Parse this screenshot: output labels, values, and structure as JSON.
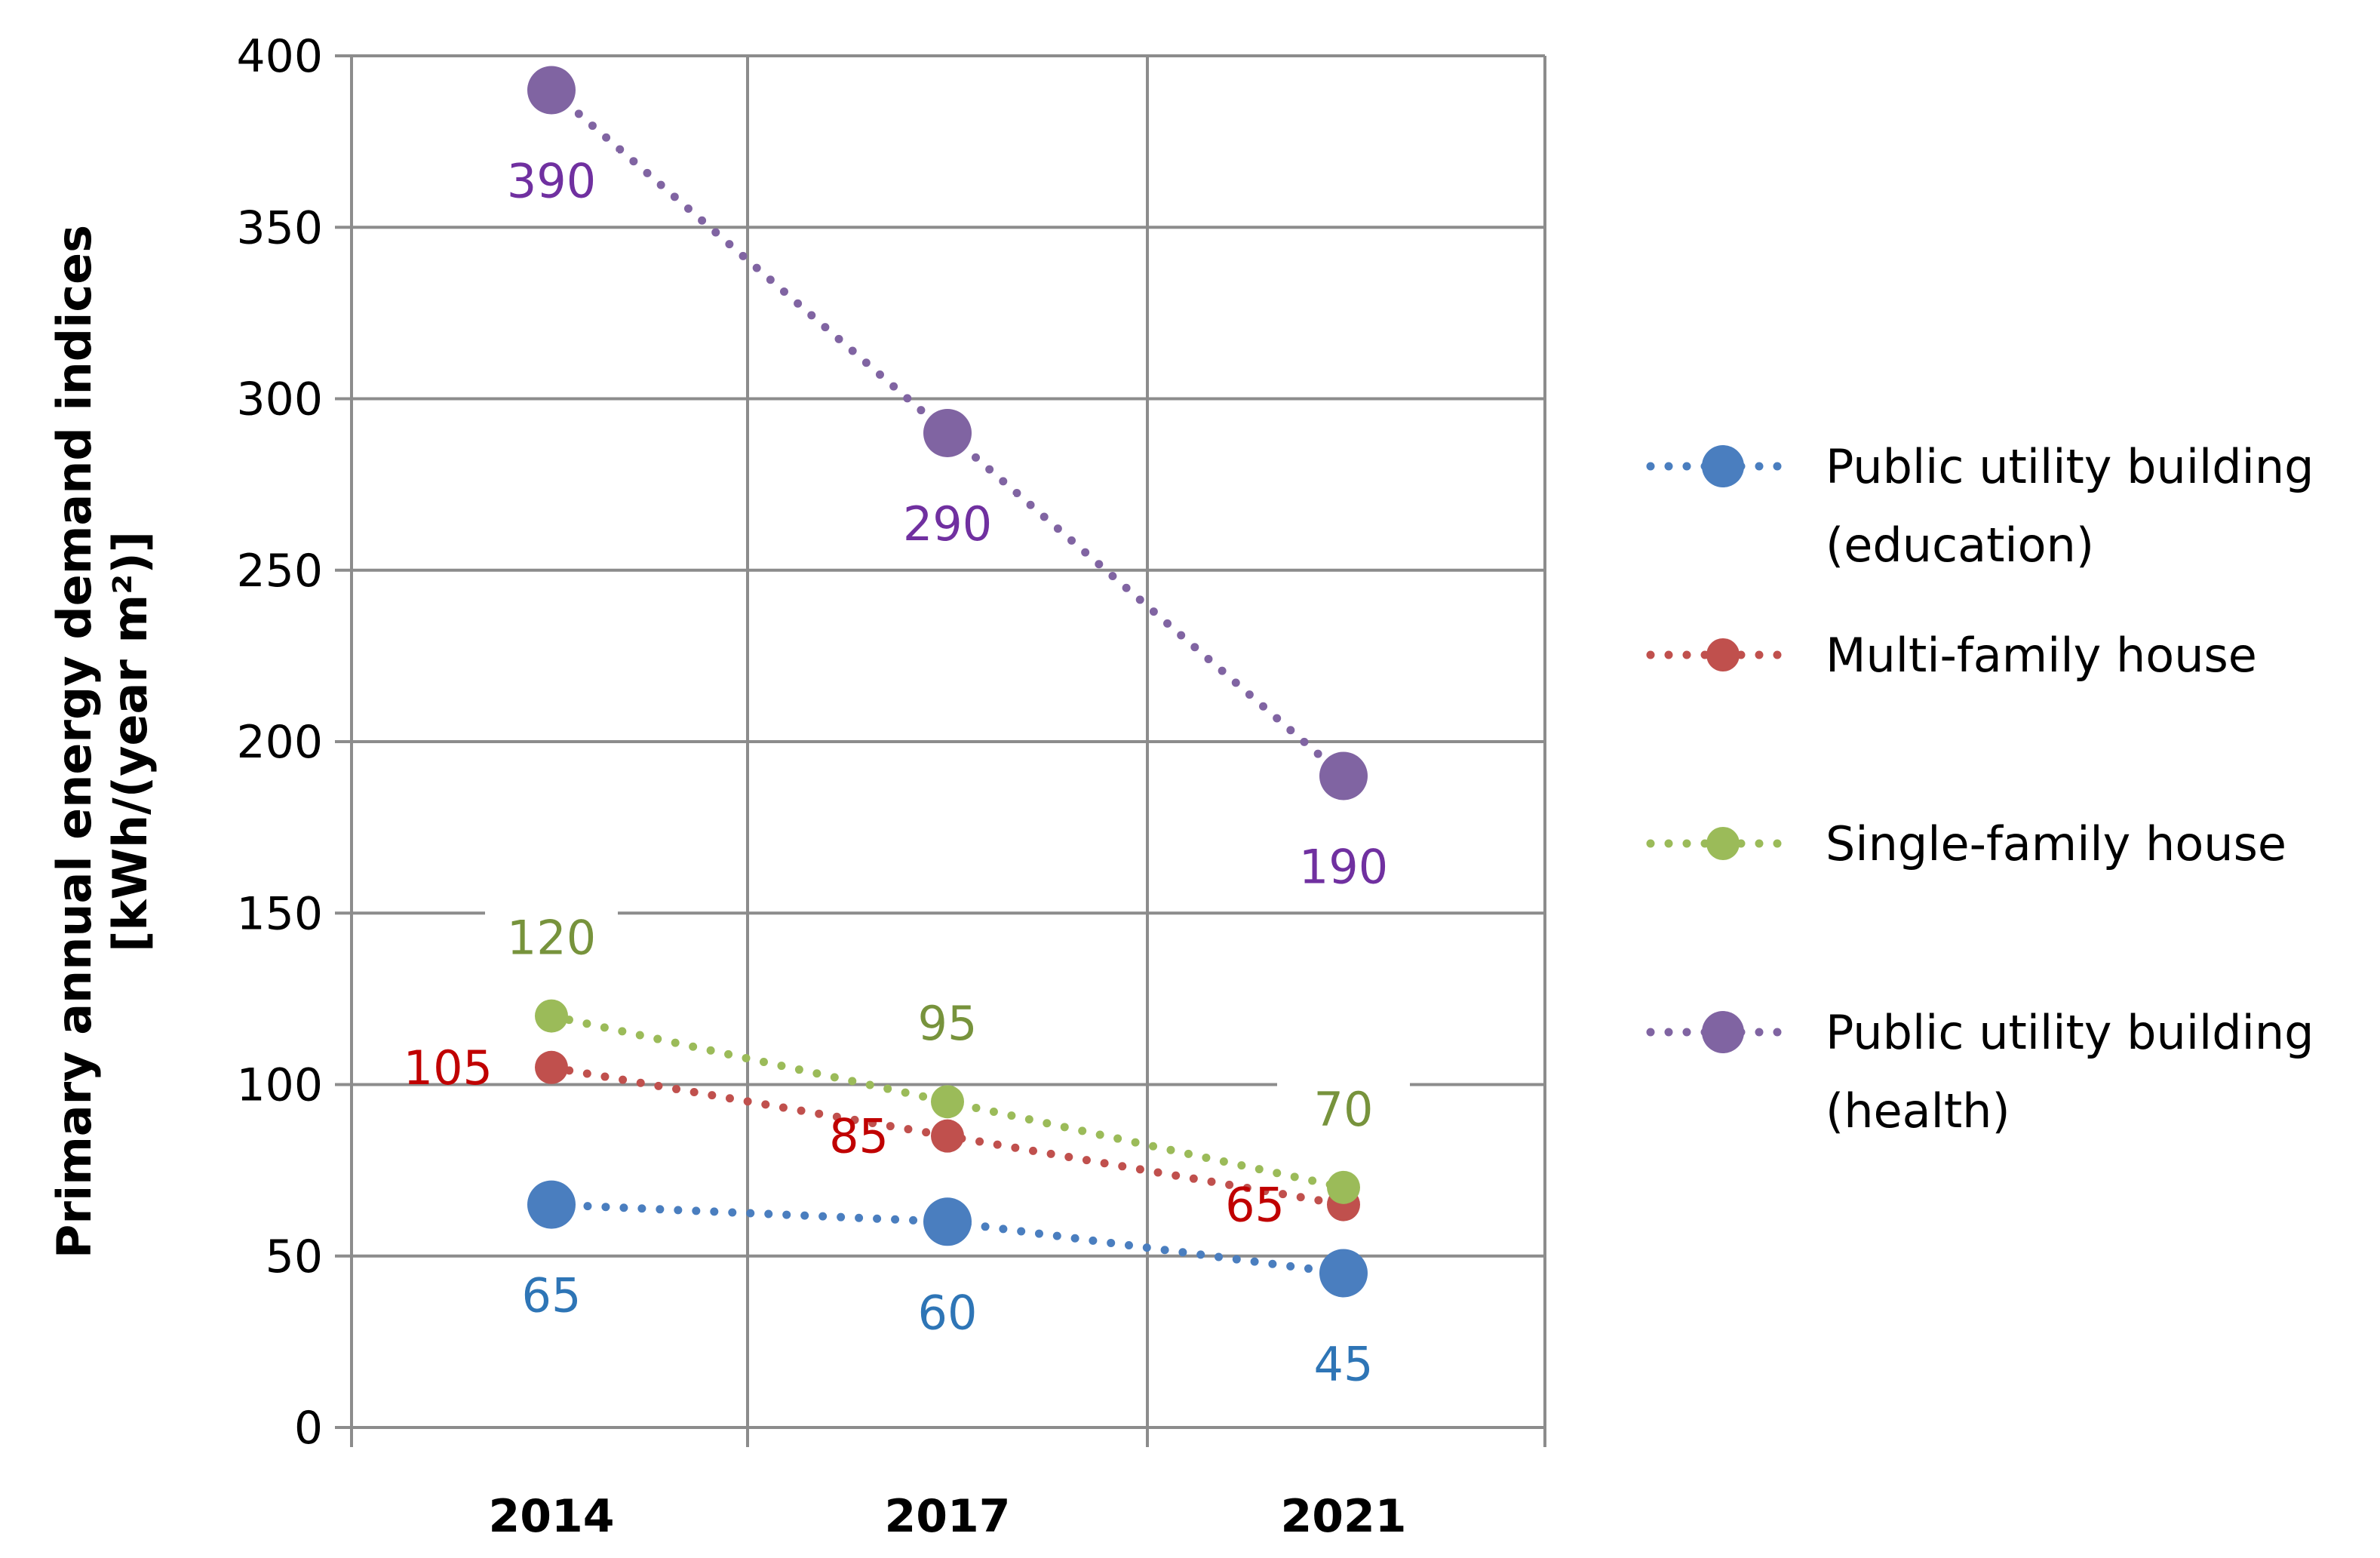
{
  "chart_data": {
    "type": "line",
    "title": "",
    "ylabel": "Primary annual energy demand indices [kWh/(year m²)]",
    "ylabel_lines": [
      "Primary annual energy demand indices",
      "[kWh/(year m²)]"
    ],
    "xlabel": "",
    "categories": [
      "2014",
      "2017",
      "2021"
    ],
    "ylim": [
      0,
      400
    ],
    "yticks": [
      0,
      50,
      100,
      150,
      200,
      250,
      300,
      350,
      400
    ],
    "grid": true,
    "legend_position": "right",
    "series": [
      {
        "name": "Public utility building (education)",
        "legend_lines": [
          "Public utility building",
          "(education)"
        ],
        "values": [
          65,
          60,
          45
        ],
        "color": "#4a7ebf",
        "label_color": "#2e75b6",
        "marker": "large",
        "label_position": "below"
      },
      {
        "name": "Multi-family house",
        "legend_lines": [
          "Multi-family house"
        ],
        "values": [
          105,
          85,
          65
        ],
        "color": "#c0504d",
        "label_color": "#c00000",
        "marker": "small",
        "label_position": "left"
      },
      {
        "name": "Single-family house",
        "legend_lines": [
          "Single-family house"
        ],
        "values": [
          120,
          95,
          70
        ],
        "color": "#9bbb59",
        "label_color": "#77933c",
        "marker": "small",
        "label_position": "above"
      },
      {
        "name": "Public utility building (health)",
        "legend_lines": [
          "Public utility building",
          "(health)"
        ],
        "values": [
          390,
          290,
          190
        ],
        "color": "#8064a2",
        "label_color": "#7030a0",
        "marker": "large",
        "label_position": "below"
      }
    ]
  }
}
